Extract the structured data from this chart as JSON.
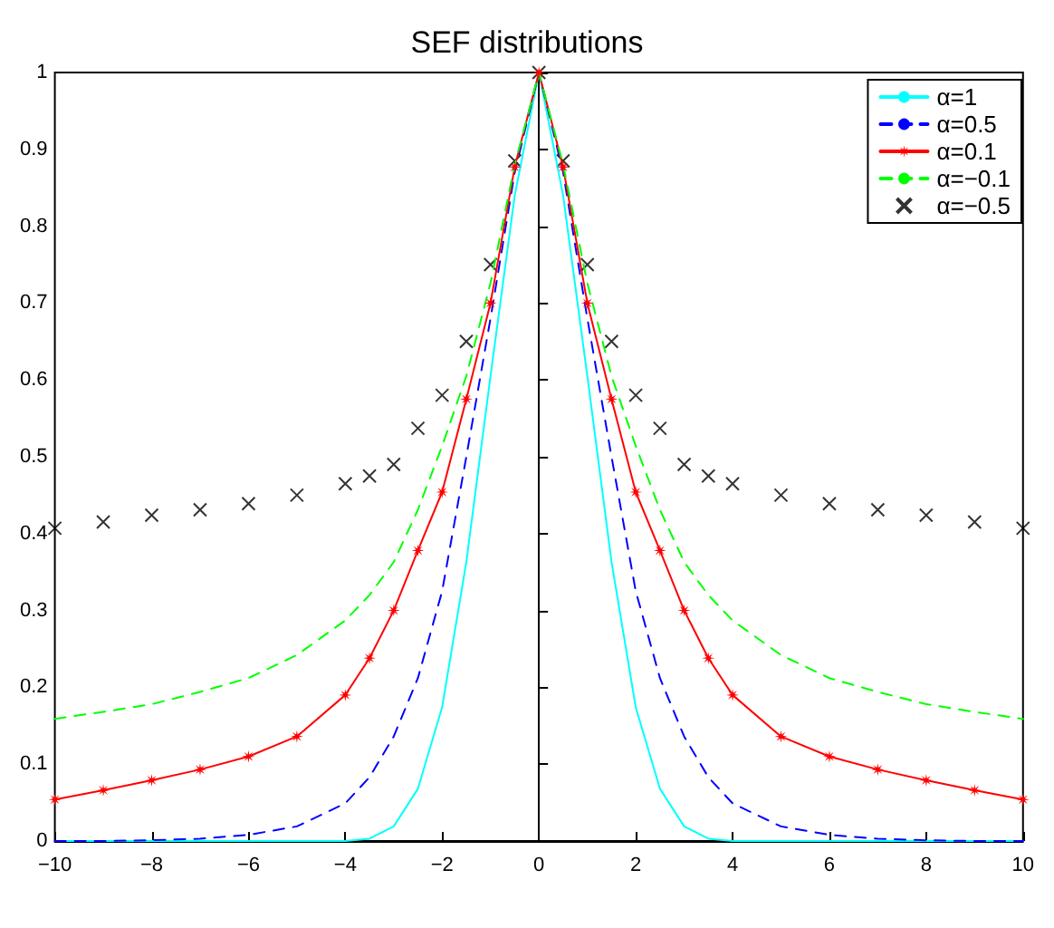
{
  "chart_data": {
    "type": "line",
    "title": "SEF distributions",
    "x": [
      -10,
      -9,
      -8,
      -7,
      -6,
      -5,
      -4,
      -3.5,
      -3,
      -2.5,
      -2,
      -1.5,
      -1,
      -0.5,
      0,
      0.5,
      1,
      1.5,
      2,
      2.5,
      3,
      3.5,
      4,
      5,
      6,
      7,
      8,
      9,
      10
    ],
    "series": [
      {
        "name": "α=1",
        "color": "#00ffff",
        "marker": "none",
        "line_style": "solid",
        "values": [
          0,
          0,
          0,
          0,
          0,
          0,
          0,
          0.003,
          0.019,
          0.068,
          0.174,
          0.363,
          0.605,
          0.84,
          1,
          0.84,
          0.605,
          0.363,
          0.174,
          0.068,
          0.019,
          0.003,
          0,
          0,
          0,
          0,
          0,
          0,
          0
        ]
      },
      {
        "name": "α=0.5",
        "color": "#0000ff",
        "marker": "none",
        "line_style": "dashed",
        "values": [
          0,
          0,
          0.001,
          0.003,
          0.008,
          0.019,
          0.049,
          0.083,
          0.136,
          0.212,
          0.325,
          0.5,
          0.68,
          0.87,
          1,
          0.87,
          0.68,
          0.5,
          0.325,
          0.212,
          0.136,
          0.083,
          0.049,
          0.019,
          0.008,
          0.003,
          0.001,
          0,
          0
        ]
      },
      {
        "name": "α=0.1",
        "color": "#ff0000",
        "marker": "star",
        "line_style": "solid",
        "values": [
          0.054,
          0.066,
          0.079,
          0.093,
          0.11,
          0.136,
          0.19,
          0.238,
          0.3,
          0.378,
          0.454,
          0.575,
          0.7,
          0.877,
          1,
          0.877,
          0.7,
          0.575,
          0.454,
          0.378,
          0.3,
          0.238,
          0.19,
          0.136,
          0.11,
          0.093,
          0.079,
          0.066,
          0.054
        ]
      },
      {
        "name": "α=−0.1",
        "color": "#00ff00",
        "marker": "none",
        "line_style": "dashed",
        "values": [
          0.159,
          0.168,
          0.178,
          0.194,
          0.212,
          0.242,
          0.287,
          0.32,
          0.363,
          0.431,
          0.514,
          0.605,
          0.726,
          0.88,
          1,
          0.88,
          0.726,
          0.605,
          0.514,
          0.431,
          0.363,
          0.32,
          0.287,
          0.242,
          0.212,
          0.194,
          0.178,
          0.168,
          0.159
        ]
      },
      {
        "name": "α=−0.5",
        "color": "#000000",
        "type": "scatter",
        "marker": "cross",
        "values": [
          0.407,
          0.415,
          0.424,
          0.431,
          0.439,
          0.45,
          0.465,
          0.475,
          0.49,
          0.537,
          0.58,
          0.65,
          0.75,
          0.885,
          1,
          0.885,
          0.75,
          0.65,
          0.58,
          0.537,
          0.49,
          0.475,
          0.465,
          0.45,
          0.439,
          0.431,
          0.424,
          0.415,
          0.407
        ]
      }
    ],
    "xlim": [
      -10,
      10
    ],
    "xticks": [
      -10,
      -8,
      -6,
      -4,
      -2,
      0,
      2,
      4,
      6,
      8,
      10
    ],
    "ylim": [
      0,
      1
    ],
    "yticks": [
      0,
      0.1,
      0.2,
      0.3,
      0.4,
      0.5,
      0.6,
      0.7,
      0.8,
      0.9,
      1
    ],
    "legend": "top right"
  }
}
